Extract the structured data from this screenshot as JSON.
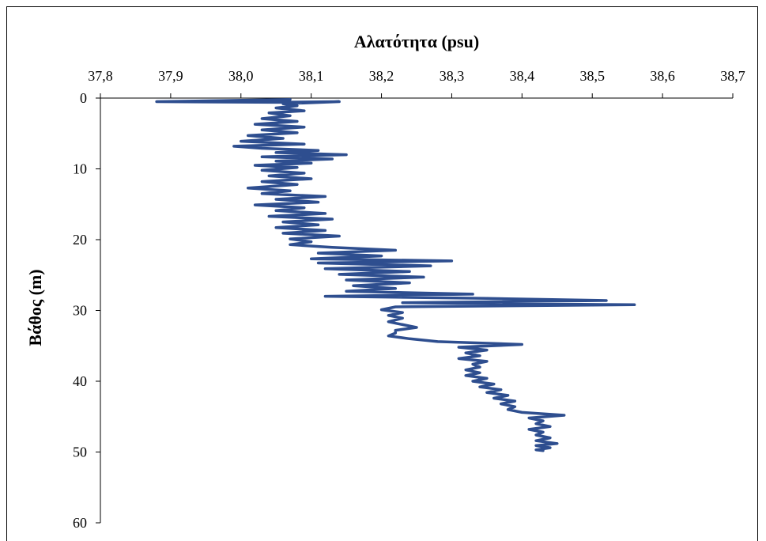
{
  "chart_data": {
    "type": "line",
    "title": "",
    "xlabel": "Αλατότητα (psu)",
    "ylabel": "Βάθος (m)",
    "x_axis_position": "top",
    "y_axis_inverted": true,
    "xlim": [
      37.8,
      38.7
    ],
    "ylim": [
      0,
      60
    ],
    "xticks": [
      37.8,
      37.9,
      38.0,
      38.1,
      38.2,
      38.3,
      38.4,
      38.5,
      38.6,
      38.7
    ],
    "xtick_labels": [
      "37,8",
      "37,9",
      "38,0",
      "38,1",
      "38,2",
      "38,3",
      "38,4",
      "38,5",
      "38,6",
      "38,7"
    ],
    "yticks": [
      0,
      10,
      20,
      30,
      40,
      50,
      60
    ],
    "ytick_labels": [
      "0",
      "10",
      "20",
      "30",
      "40",
      "50",
      "60"
    ],
    "grid": false,
    "legend": "none",
    "series": [
      {
        "color": "#2E4E8F",
        "points": [
          [
            38.07,
            0.2
          ],
          [
            37.88,
            0.5
          ],
          [
            38.05,
            0.6
          ],
          [
            38.14,
            0.5
          ],
          [
            38.06,
            0.8
          ],
          [
            38.08,
            1.1
          ],
          [
            38.05,
            1.4
          ],
          [
            38.09,
            1.8
          ],
          [
            38.04,
            2.1
          ],
          [
            38.07,
            2.5
          ],
          [
            38.03,
            2.9
          ],
          [
            38.08,
            3.3
          ],
          [
            38.02,
            3.7
          ],
          [
            38.09,
            4.1
          ],
          [
            38.03,
            4.5
          ],
          [
            38.08,
            4.9
          ],
          [
            38.01,
            5.3
          ],
          [
            38.06,
            5.7
          ],
          [
            38.0,
            6.1
          ],
          [
            38.09,
            6.5
          ],
          [
            37.99,
            6.8
          ],
          [
            38.03,
            7.1
          ],
          [
            38.11,
            7.4
          ],
          [
            38.05,
            7.7
          ],
          [
            38.15,
            8.0
          ],
          [
            38.03,
            8.3
          ],
          [
            38.13,
            8.6
          ],
          [
            38.05,
            8.9
          ],
          [
            38.1,
            9.2
          ],
          [
            38.02,
            9.5
          ],
          [
            38.08,
            9.8
          ],
          [
            38.03,
            10.2
          ],
          [
            38.09,
            10.6
          ],
          [
            38.04,
            11.0
          ],
          [
            38.1,
            11.4
          ],
          [
            38.03,
            11.8
          ],
          [
            38.08,
            12.2
          ],
          [
            38.01,
            12.7
          ],
          [
            38.07,
            13.1
          ],
          [
            38.03,
            13.5
          ],
          [
            38.12,
            13.9
          ],
          [
            38.05,
            14.3
          ],
          [
            38.11,
            14.7
          ],
          [
            38.02,
            15.1
          ],
          [
            38.09,
            15.5
          ],
          [
            38.05,
            15.9
          ],
          [
            38.12,
            16.3
          ],
          [
            38.04,
            16.7
          ],
          [
            38.13,
            17.1
          ],
          [
            38.06,
            17.5
          ],
          [
            38.11,
            17.9
          ],
          [
            38.05,
            18.3
          ],
          [
            38.12,
            18.7
          ],
          [
            38.06,
            19.1
          ],
          [
            38.14,
            19.5
          ],
          [
            38.07,
            19.9
          ],
          [
            38.1,
            20.3
          ],
          [
            38.07,
            20.7
          ],
          [
            38.13,
            21.1
          ],
          [
            38.22,
            21.5
          ],
          [
            38.11,
            21.9
          ],
          [
            38.2,
            22.3
          ],
          [
            38.1,
            22.7
          ],
          [
            38.3,
            23.0
          ],
          [
            38.11,
            23.3
          ],
          [
            38.27,
            23.7
          ],
          [
            38.12,
            24.1
          ],
          [
            38.24,
            24.5
          ],
          [
            38.14,
            24.9
          ],
          [
            38.26,
            25.3
          ],
          [
            38.15,
            25.7
          ],
          [
            38.24,
            26.1
          ],
          [
            38.16,
            26.5
          ],
          [
            38.22,
            26.9
          ],
          [
            38.15,
            27.3
          ],
          [
            38.33,
            27.7
          ],
          [
            38.12,
            28.0
          ],
          [
            38.35,
            28.3
          ],
          [
            38.52,
            28.6
          ],
          [
            38.23,
            28.9
          ],
          [
            38.56,
            29.2
          ],
          [
            38.22,
            29.5
          ],
          [
            38.2,
            29.9
          ],
          [
            38.23,
            30.3
          ],
          [
            38.21,
            30.7
          ],
          [
            38.23,
            31.1
          ],
          [
            38.21,
            31.6
          ],
          [
            38.23,
            32.0
          ],
          [
            38.25,
            32.4
          ],
          [
            38.22,
            32.8
          ],
          [
            38.22,
            33.2
          ],
          [
            38.21,
            33.6
          ],
          [
            38.24,
            34.0
          ],
          [
            38.28,
            34.4
          ],
          [
            38.4,
            34.8
          ],
          [
            38.31,
            35.2
          ],
          [
            38.35,
            35.6
          ],
          [
            38.32,
            36.0
          ],
          [
            38.34,
            36.4
          ],
          [
            38.31,
            36.8
          ],
          [
            38.35,
            37.2
          ],
          [
            38.33,
            37.6
          ],
          [
            38.34,
            38.0
          ],
          [
            38.32,
            38.4
          ],
          [
            38.34,
            38.8
          ],
          [
            38.32,
            39.2
          ],
          [
            38.35,
            39.6
          ],
          [
            38.33,
            40.0
          ],
          [
            38.36,
            40.4
          ],
          [
            38.34,
            40.8
          ],
          [
            38.37,
            41.2
          ],
          [
            38.35,
            41.6
          ],
          [
            38.38,
            42.0
          ],
          [
            38.36,
            42.4
          ],
          [
            38.39,
            42.8
          ],
          [
            38.37,
            43.2
          ],
          [
            38.39,
            43.6
          ],
          [
            38.38,
            44.0
          ],
          [
            38.4,
            44.4
          ],
          [
            38.46,
            44.8
          ],
          [
            38.41,
            45.2
          ],
          [
            38.43,
            45.6
          ],
          [
            38.42,
            46.0
          ],
          [
            38.44,
            46.4
          ],
          [
            38.41,
            46.8
          ],
          [
            38.43,
            47.2
          ],
          [
            38.42,
            47.6
          ],
          [
            38.44,
            48.0
          ],
          [
            38.42,
            48.4
          ],
          [
            38.45,
            48.8
          ],
          [
            38.42,
            49.1
          ],
          [
            38.44,
            49.4
          ],
          [
            38.42,
            49.7
          ],
          [
            38.43,
            49.8
          ]
        ]
      }
    ]
  }
}
